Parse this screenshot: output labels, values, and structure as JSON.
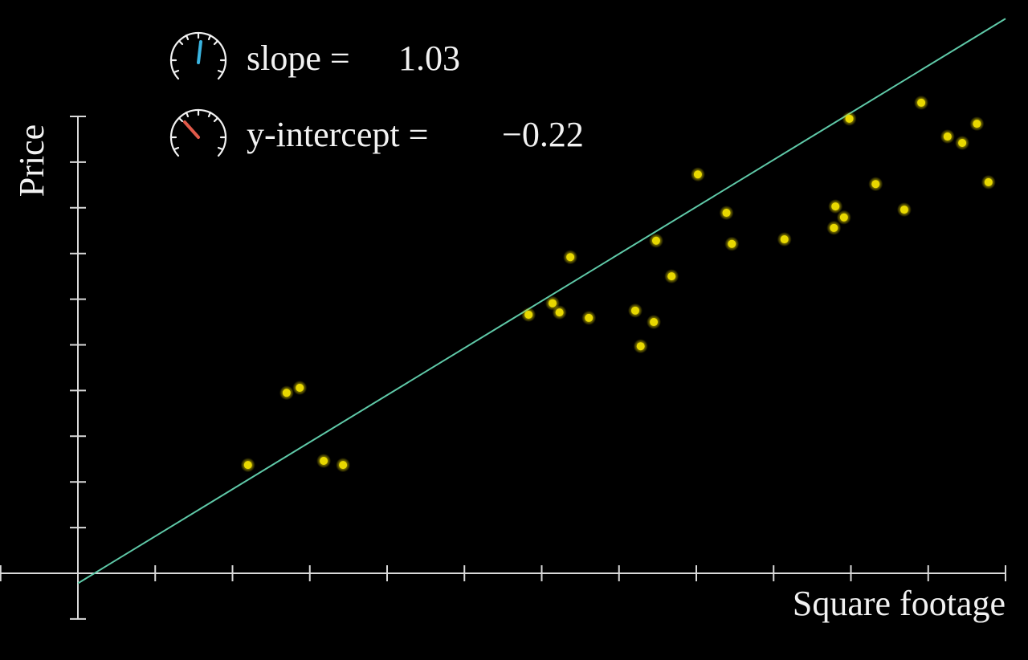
{
  "chart_data": {
    "type": "scatter",
    "x_label": "Square footage",
    "y_label": "Price",
    "x": [
      2.2,
      2.7,
      2.87,
      3.18,
      3.43,
      5.83,
      6.14,
      6.23,
      6.37,
      6.61,
      7.21,
      7.28,
      7.45,
      7.48,
      7.68,
      8.02,
      8.39,
      8.46,
      9.14,
      9.78,
      9.8,
      9.91,
      9.98,
      10.32,
      10.69,
      10.91,
      11.25,
      11.44,
      11.63,
      11.78
    ],
    "values": [
      2.37,
      3.95,
      4.06,
      2.46,
      2.37,
      5.66,
      5.91,
      5.71,
      6.92,
      5.59,
      5.75,
      4.97,
      5.5,
      7.28,
      6.5,
      8.73,
      7.89,
      7.21,
      7.31,
      7.56,
      8.03,
      7.79,
      9.95,
      8.52,
      7.96,
      10.3,
      9.56,
      9.42,
      9.84,
      8.56
    ],
    "color": "#e8d800",
    "xlim": [
      -1,
      12
    ],
    "xticks": [
      -1,
      0,
      1,
      2,
      3,
      4,
      5,
      6,
      7,
      8,
      9,
      10,
      11,
      12
    ],
    "ylim": [
      -1,
      10
    ],
    "yticks": [
      -1,
      0,
      1,
      2,
      3,
      4,
      5,
      6,
      7,
      8,
      9,
      10
    ],
    "fit": {
      "slope_label": "slope =",
      "slope": 1.03,
      "intercept_label": "y-intercept =",
      "intercept": -0.22,
      "intercept_value_label": "−0.22",
      "color": "#5fc9a8"
    }
  }
}
